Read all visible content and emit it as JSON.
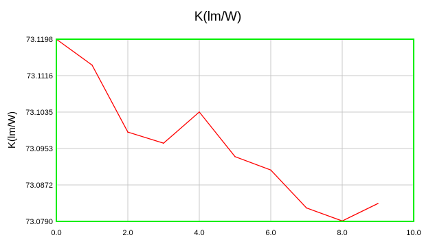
{
  "chart_data": {
    "type": "line",
    "title": "K(lm/W)",
    "xlabel": "",
    "ylabel": "K(lm/W)",
    "x": [
      0,
      1,
      2,
      3,
      4,
      5,
      6,
      7,
      8,
      9
    ],
    "series": [
      {
        "values": [
          73.1198,
          73.114,
          73.099,
          73.0965,
          73.1035,
          73.0935,
          73.0905,
          73.082,
          73.0791,
          73.083
        ]
      }
    ],
    "xlim": [
      0,
      10
    ],
    "ylim": [
      73.079,
      73.1198
    ],
    "xticks": [
      "0.0",
      "2.0",
      "4.0",
      "6.0",
      "8.0",
      "10.0"
    ],
    "yticks": [
      "73.1198",
      "73.1116",
      "73.1035",
      "73.0953",
      "73.0872",
      "73.0790"
    ],
    "grid": true,
    "colors": {
      "line": "#ff0000",
      "frame": "#00ee00",
      "grid": "#c8c8c8"
    }
  }
}
